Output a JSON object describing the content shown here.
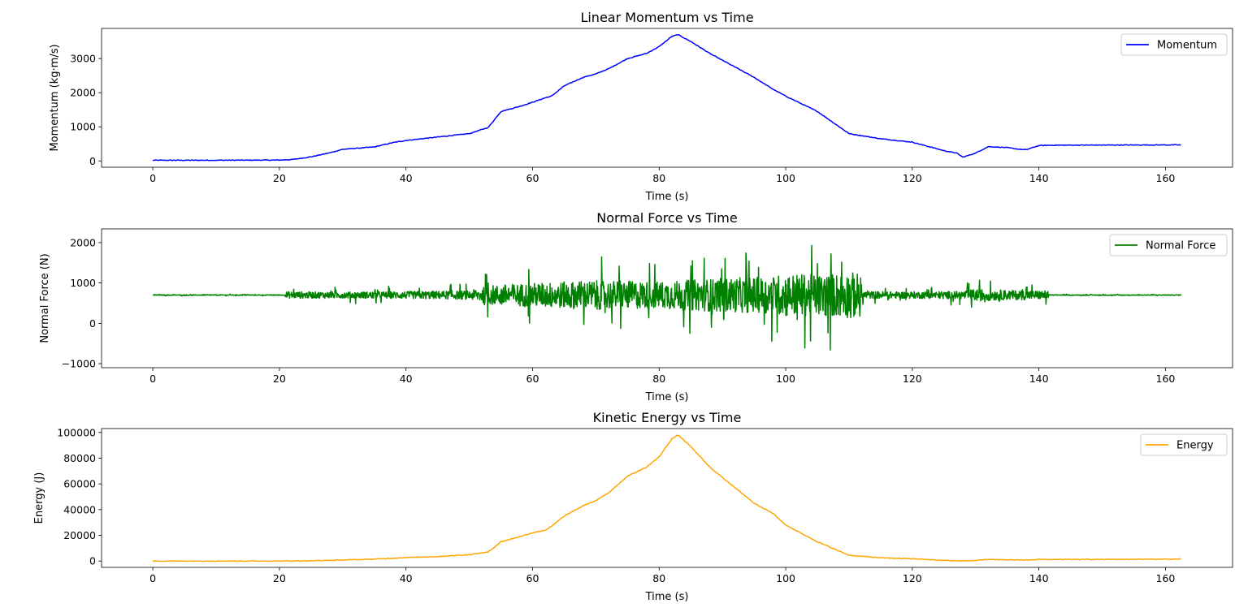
{
  "chart_data": [
    {
      "type": "line",
      "title": "Linear Momentum vs Time",
      "xlabel": "Time (s)",
      "ylabel": "Momentum (kg·m/s)",
      "xlim": [
        -8.1,
        170.6
      ],
      "ylim": [
        -184,
        3884
      ],
      "xticks": [
        0,
        20,
        40,
        60,
        80,
        100,
        120,
        140,
        160
      ],
      "yticks": [
        0,
        1000,
        2000,
        3000
      ],
      "ytick_labels": [
        "0",
        "1000",
        "2000",
        "3000"
      ],
      "legend_loc": "upper right",
      "noise": 0,
      "series": [
        {
          "name": "Momentum",
          "color": "#0000ff",
          "x": [
            0,
            10,
            20,
            22,
            25,
            28,
            30,
            35,
            38,
            40,
            45,
            50,
            53,
            55,
            58,
            60,
            62,
            63,
            65,
            68,
            70,
            72,
            75,
            78,
            80,
            82,
            83,
            85,
            88,
            90,
            95,
            98,
            100,
            105,
            110,
            115,
            120,
            125,
            127,
            128,
            130,
            132,
            135,
            137,
            138,
            140,
            142,
            150,
            162.5
          ],
          "y": [
            20,
            20,
            25,
            40,
            120,
            240,
            340,
            410,
            540,
            600,
            700,
            800,
            980,
            1450,
            1600,
            1720,
            1850,
            1900,
            2200,
            2450,
            2550,
            2700,
            3000,
            3150,
            3350,
            3650,
            3700,
            3500,
            3150,
            2950,
            2450,
            2100,
            1900,
            1450,
            800,
            650,
            550,
            300,
            230,
            110,
            230,
            420,
            390,
            340,
            330,
            450,
            460,
            465,
            470
          ]
        }
      ]
    },
    {
      "type": "line",
      "title": "Normal Force vs Time",
      "xlabel": "Time (s)",
      "ylabel": "Normal Force (N)",
      "xlim": [
        -8.1,
        170.6
      ],
      "ylim": [
        -1100,
        2340
      ],
      "xticks": [
        0,
        20,
        40,
        60,
        80,
        100,
        120,
        140,
        160
      ],
      "yticks": [
        -1000,
        0,
        1000,
        2000
      ],
      "ytick_labels": [
        "−1000",
        "0",
        "1000",
        "2000"
      ],
      "legend_loc": "upper right",
      "noise": 1,
      "series": [
        {
          "name": "Normal Force",
          "color": "#008000",
          "x": [
            0,
            20.9,
            21,
            30,
            40,
            50,
            52,
            53,
            60,
            70,
            80,
            90,
            97.5,
            100,
            105,
            110,
            111.9,
            112,
            120,
            128,
            130,
            135,
            141.5,
            141.6,
            162.5
          ],
          "y": [
            700,
            700,
            700,
            700,
            700,
            700,
            700,
            700,
            700,
            700,
            700,
            700,
            700,
            700,
            700,
            700,
            700,
            700,
            700,
            700,
            700,
            700,
            700,
            700,
            700
          ],
          "amp": [
            15,
            15,
            140,
            130,
            150,
            180,
            300,
            400,
            500,
            600,
            560,
            700,
            750,
            900,
            850,
            950,
            900,
            150,
            140,
            160,
            250,
            200,
            180,
            15,
            15
          ]
        }
      ]
    },
    {
      "type": "line",
      "title": "Kinetic Energy vs Time",
      "xlabel": "Time (s)",
      "ylabel": "Energy (J)",
      "xlim": [
        -8.1,
        170.6
      ],
      "ylim": [
        -4900,
        103000
      ],
      "xticks": [
        0,
        20,
        40,
        60,
        80,
        100,
        120,
        140,
        160
      ],
      "yticks": [
        0,
        20000,
        40000,
        60000,
        80000,
        100000
      ],
      "ytick_labels": [
        "0",
        "20000",
        "40000",
        "60000",
        "80000",
        "100000"
      ],
      "legend_loc": "upper right",
      "noise": 0,
      "series": [
        {
          "name": "Energy",
          "color": "#ffa500",
          "x": [
            0,
            20,
            25,
            30,
            35,
            40,
            45,
            50,
            53,
            55,
            58,
            60,
            62,
            63,
            65,
            68,
            70,
            72,
            75,
            78,
            80,
            82,
            83,
            85,
            88,
            90,
            95,
            98,
            100,
            105,
            110,
            115,
            120,
            125,
            128,
            130,
            132,
            135,
            138,
            140,
            150,
            162.5
          ],
          "y": [
            0,
            0,
            200,
            800,
            1500,
            2700,
            3500,
            5000,
            7000,
            15000,
            19000,
            22000,
            24000,
            27000,
            35000,
            43000,
            47000,
            53000,
            66000,
            73000,
            81000,
            95000,
            98000,
            89000,
            73000,
            65000,
            45000,
            37000,
            28000,
            15000,
            4500,
            2500,
            1800,
            500,
            100,
            500,
            1300,
            1000,
            800,
            1200,
            1300,
            1500
          ]
        }
      ]
    }
  ]
}
